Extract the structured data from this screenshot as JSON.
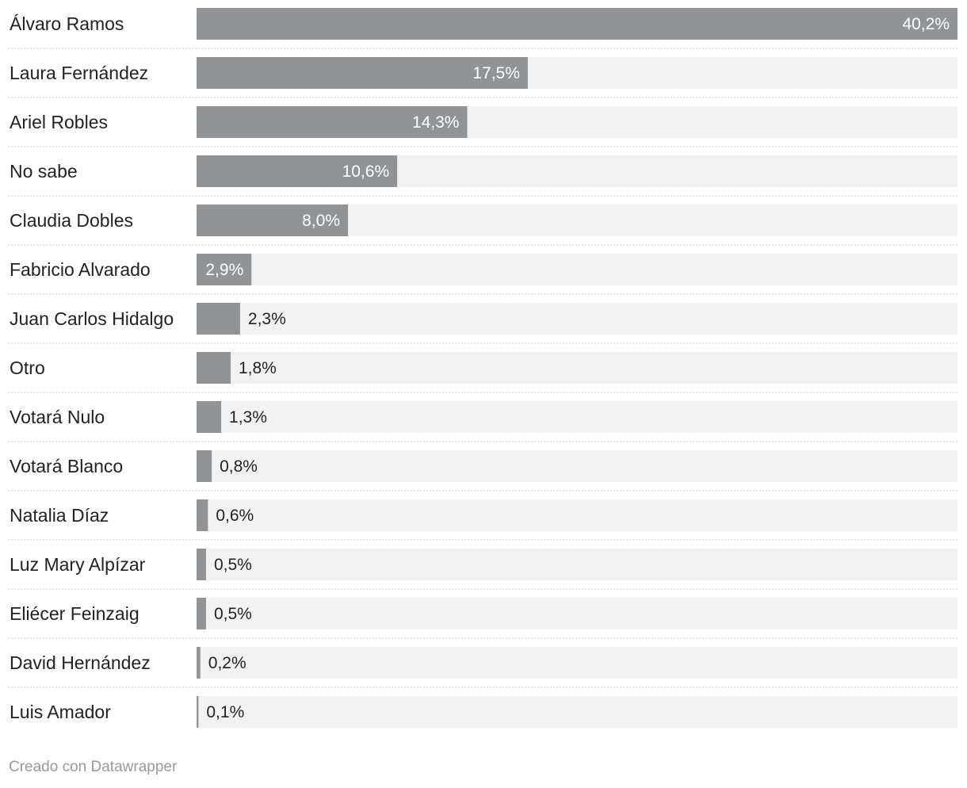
{
  "chart_data": {
    "type": "bar",
    "orientation": "horizontal",
    "categories": [
      "Álvaro Ramos",
      "Laura Fernández",
      "Ariel Robles",
      "No sabe",
      "Claudia Dobles",
      "Fabricio Alvarado",
      "Juan Carlos Hidalgo",
      "Otro",
      "Votará Nulo",
      "Votará Blanco",
      "Natalia Díaz",
      "Luz Mary Alpízar",
      "Eliécer Feinzaig",
      "David Hernández",
      "Luis Amador"
    ],
    "values": [
      40.2,
      17.5,
      14.3,
      10.6,
      8.0,
      2.9,
      2.3,
      1.8,
      1.3,
      0.8,
      0.6,
      0.5,
      0.5,
      0.2,
      0.1
    ],
    "value_labels": [
      "40,2%",
      "17,5%",
      "14,3%",
      "10,6%",
      "8,0%",
      "2,9%",
      "2,3%",
      "1,8%",
      "1,3%",
      "0,8%",
      "0,6%",
      "0,5%",
      "0,5%",
      "0,2%",
      "0,1%"
    ],
    "xlim": [
      0,
      40.2
    ],
    "title": "",
    "xlabel": "",
    "ylabel": "",
    "grid": false,
    "colors": {
      "bar": "#919497",
      "track": "#f2f2f2",
      "separator": "#d0d0d0",
      "label_inside": "#ffffff",
      "label_outside": "#222222"
    }
  },
  "footer": {
    "credit": "Creado con Datawrapper"
  }
}
